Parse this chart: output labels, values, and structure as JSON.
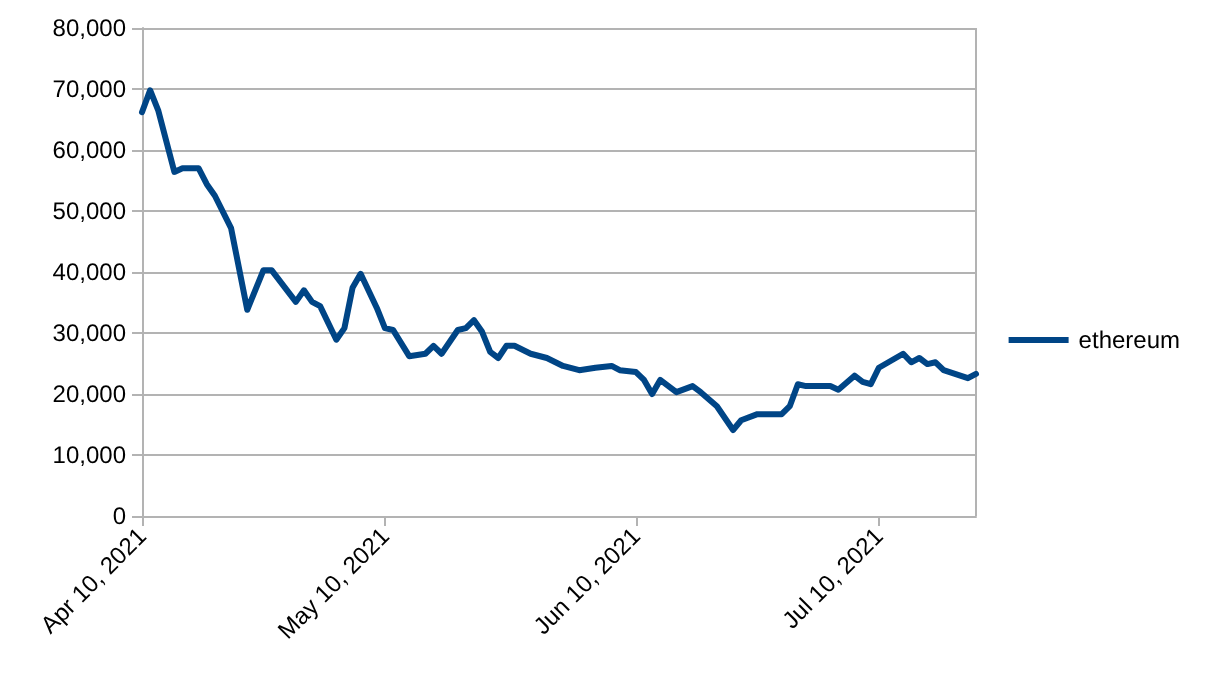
{
  "chart_data": {
    "type": "line",
    "x": [
      "2021-04-10",
      "2021-04-11",
      "2021-04-12",
      "2021-04-14",
      "2021-04-15",
      "2021-04-17",
      "2021-04-18",
      "2021-04-19",
      "2021-04-21",
      "2021-04-23",
      "2021-04-25",
      "2021-04-26",
      "2021-04-29",
      "2021-04-30",
      "2021-05-01",
      "2021-05-02",
      "2021-05-04",
      "2021-05-05",
      "2021-05-06",
      "2021-05-07",
      "2021-05-09",
      "2021-05-10",
      "2021-05-11",
      "2021-05-13",
      "2021-05-15",
      "2021-05-16",
      "2021-05-17",
      "2021-05-19",
      "2021-05-20",
      "2021-05-21",
      "2021-05-22",
      "2021-05-23",
      "2021-05-24",
      "2021-05-25",
      "2021-05-26",
      "2021-05-28",
      "2021-05-30",
      "2021-06-01",
      "2021-06-03",
      "2021-06-05",
      "2021-06-07",
      "2021-06-08",
      "2021-06-10",
      "2021-06-11",
      "2021-06-12",
      "2021-06-13",
      "2021-06-15",
      "2021-06-17",
      "2021-06-18",
      "2021-06-20",
      "2021-06-22",
      "2021-06-23",
      "2021-06-25",
      "2021-06-28",
      "2021-06-29",
      "2021-06-30",
      "2021-07-01",
      "2021-07-03",
      "2021-07-04",
      "2021-07-05",
      "2021-07-07",
      "2021-07-08",
      "2021-07-09",
      "2021-07-10",
      "2021-07-13",
      "2021-07-14",
      "2021-07-15",
      "2021-07-16",
      "2021-07-17",
      "2021-07-18",
      "2021-07-21",
      "2021-07-22"
    ],
    "series": [
      {
        "name": "ethereum",
        "color": "#004586",
        "values": [
          66200,
          69800,
          66500,
          56400,
          57000,
          57000,
          54400,
          52500,
          47200,
          33800,
          40300,
          40300,
          35100,
          37000,
          35100,
          34400,
          28900,
          30800,
          37400,
          39700,
          34100,
          30800,
          30500,
          26200,
          26600,
          27900,
          26600,
          30500,
          30800,
          32100,
          30200,
          26900,
          25900,
          27900,
          27900,
          26600,
          25900,
          24600,
          23900,
          24300,
          24600,
          23900,
          23600,
          22300,
          20000,
          22300,
          20300,
          21300,
          20300,
          18000,
          14100,
          15700,
          16700,
          16700,
          18000,
          21600,
          21300,
          21300,
          21300,
          20700,
          23000,
          22000,
          21600,
          24300,
          26600,
          25200,
          25900,
          24900,
          25200,
          23900,
          22600,
          23300
        ]
      }
    ],
    "xlim": [
      "2021-04-10",
      "2021-07-22"
    ],
    "xticks": [
      {
        "value": "2021-04-10",
        "label": "Apr 10, 2021"
      },
      {
        "value": "2021-05-10",
        "label": "May 10, 2021"
      },
      {
        "value": "2021-06-10",
        "label": "Jun 10, 2021"
      },
      {
        "value": "2021-07-10",
        "label": "Jul 10, 2021"
      }
    ],
    "ylim": [
      0,
      80000
    ],
    "yticks": [
      0,
      {
        "value": 10000,
        "label": "10,000"
      },
      {
        "value": 20000,
        "label": "20,000"
      },
      {
        "value": 30000,
        "label": "30,000"
      },
      {
        "value": 40000,
        "label": "40,000"
      },
      {
        "value": 50000,
        "label": "50,000"
      },
      {
        "value": 60000,
        "label": "60,000"
      },
      {
        "value": 70000,
        "label": "70,000"
      },
      {
        "value": 80000,
        "label": "80,000"
      }
    ],
    "grid": "y",
    "legend": "right",
    "marker": "none",
    "line_style": "solid"
  }
}
